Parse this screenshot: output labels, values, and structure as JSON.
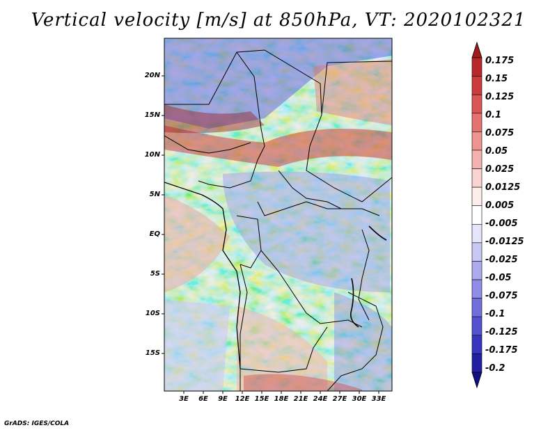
{
  "title": "Vertical velocity [m/s] at 850hPa, VT: 2020102321",
  "credit": "GrADS: IGES/COLA",
  "map": {
    "lat_labels": [
      "20N",
      "15N",
      "10N",
      "5N",
      "EQ",
      "5S",
      "10S",
      "15S"
    ],
    "lon_labels": [
      "3E",
      "6E",
      "9E",
      "12E",
      "15E",
      "18E",
      "21E",
      "24E",
      "27E",
      "30E",
      "33E"
    ]
  },
  "colorbar": {
    "labels": [
      "0.175",
      "0.15",
      "0.125",
      "0.1",
      "0.075",
      "0.05",
      "0.025",
      "0.0125",
      "0.005",
      "-0.005",
      "-0.0125",
      "-0.025",
      "-0.05",
      "-0.075",
      "-0.1",
      "-0.125",
      "-0.175",
      "-0.2"
    ],
    "colors": [
      "#a01a1e",
      "#b8282b",
      "#cc3b3c",
      "#da5553",
      "#e47370",
      "#ed9390",
      "#f4b2ae",
      "#fad2cf",
      "#fdeeec",
      "#ffffff",
      "#e4e4fa",
      "#c9c8f4",
      "#adabee",
      "#8f8de5",
      "#716fdc",
      "#5452cf",
      "#3835bd",
      "#221fa3",
      "#120e86"
    ]
  }
}
